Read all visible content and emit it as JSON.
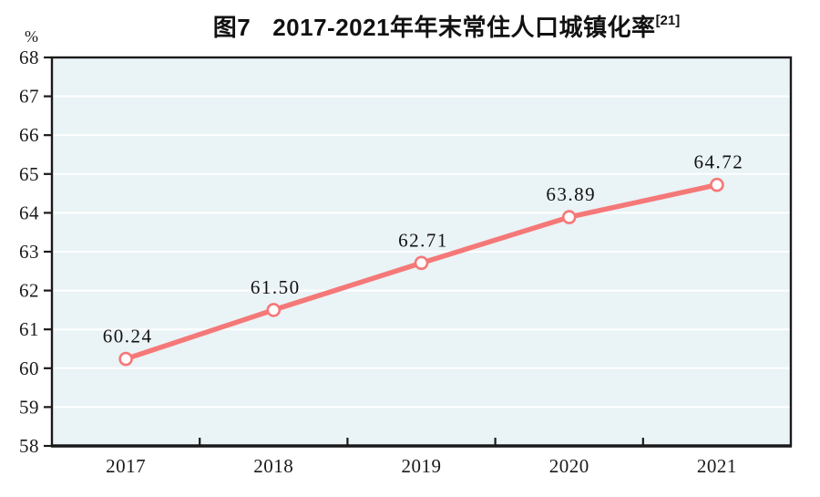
{
  "header": {
    "title_prefix": "图7",
    "title_text": "2017-2021年年末常住人口城镇化率",
    "title_superscript": "[21]"
  },
  "chart_data": {
    "type": "line",
    "title": "图7 2017-2021年年末常住人口城镇化率[21]",
    "unit_label": "%",
    "xlabel": "",
    "ylabel": "%",
    "categories": [
      "2017",
      "2018",
      "2019",
      "2020",
      "2021"
    ],
    "series": [
      {
        "name": "年末常住人口城镇化率",
        "values": [
          60.24,
          61.5,
          62.71,
          63.89,
          64.72
        ]
      }
    ],
    "value_labels": [
      "60.24",
      "61.50",
      "62.71",
      "63.89",
      "64.72"
    ],
    "ylim": [
      58,
      68
    ],
    "ytick_step": 1,
    "yticks": [
      58,
      59,
      60,
      61,
      62,
      63,
      64,
      65,
      66,
      67,
      68
    ],
    "grid": true,
    "legend_position": "none",
    "colors": {
      "line": "#f57878",
      "marker_fill": "#ffffff",
      "plot_bg": "#eaf3f6",
      "grid": "#ffffff",
      "axis": "#1a1a1a",
      "text": "#1a1a1a"
    }
  }
}
